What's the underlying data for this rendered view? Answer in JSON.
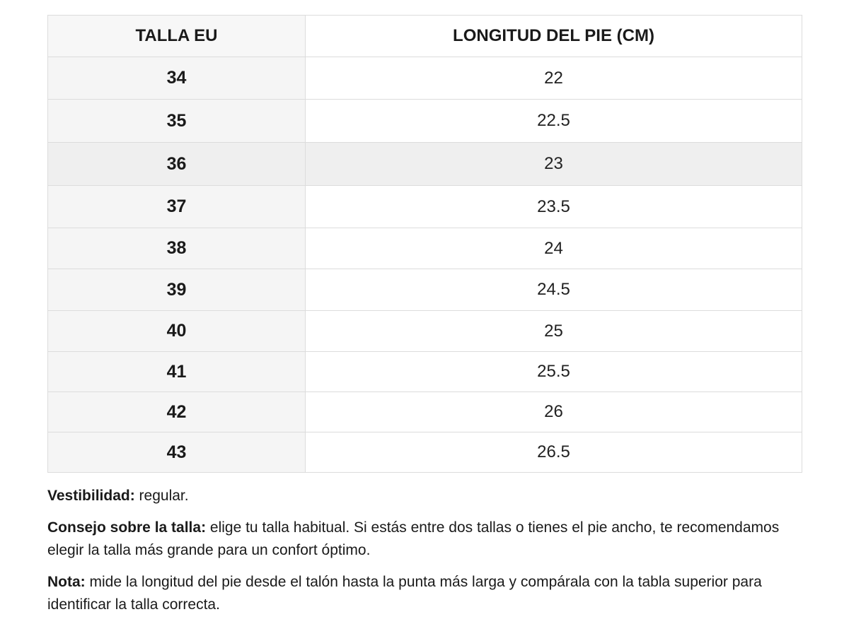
{
  "table": {
    "headers": [
      "TALLA EU",
      "LONGITUD DEL PIE (CM)"
    ],
    "rows": [
      {
        "size": "34",
        "length": "22"
      },
      {
        "size": "35",
        "length": "22.5"
      },
      {
        "size": "36",
        "length": "23"
      },
      {
        "size": "37",
        "length": "23.5"
      },
      {
        "size": "38",
        "length": "24"
      },
      {
        "size": "39",
        "length": "24.5"
      },
      {
        "size": "40",
        "length": "25"
      },
      {
        "size": "41",
        "length": "25.5"
      },
      {
        "size": "42",
        "length": "26"
      },
      {
        "size": "43",
        "length": "26.5"
      }
    ],
    "highlighted_row": "36"
  },
  "notes": {
    "fit_label": "Vestibilidad:",
    "fit_text": " regular.",
    "advice_label": "Consejo sobre la talla:",
    "advice_text": " elige tu talla habitual. Si estás entre dos tallas o tienes el pie ancho, te recomendamos elegir la talla más grande para un confort óptimo.",
    "note_label": "Nota:",
    "note_text": " mide la longitud del pie desde el talón hasta la punta más larga y compárala con la tabla superior para identificar la talla correcta."
  },
  "colors": {
    "border": "#dcdcdc",
    "size_column_bg": "#f5f5f5",
    "highlight_bg": "#efefef",
    "text": "#1a1a1a"
  }
}
